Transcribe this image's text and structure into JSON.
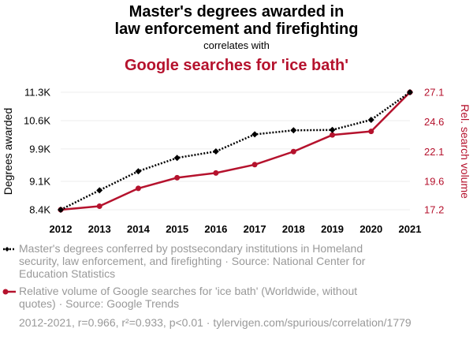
{
  "header": {
    "title_line1": "Master's degrees awarded in",
    "title_line2": "law enforcement and firefighting",
    "correlates": "correlates with",
    "subtitle": "Google searches for 'ice bath'"
  },
  "colors": {
    "series1": "#000000",
    "series2": "#b5122d",
    "grid": "#eeeeee",
    "legend_text": "#999999",
    "title": "#000000"
  },
  "chart_data": {
    "type": "line",
    "x": [
      "2012",
      "2013",
      "2014",
      "2015",
      "2016",
      "2017",
      "2018",
      "2019",
      "2020",
      "2021"
    ],
    "series": [
      {
        "name": "Master's degrees conferred by postsecondary institutions in Homeland security, law enforcement, and firefighting",
        "axis": "left",
        "style": "dotted",
        "marker": "diamond",
        "values": [
          8400,
          8880,
          9350,
          9680,
          9840,
          10260,
          10360,
          10370,
          10620,
          11300
        ]
      },
      {
        "name": "Relative volume of Google searches for 'ice bath' (Worldwide, without quotes)",
        "axis": "right",
        "style": "solid",
        "marker": "circle",
        "values": [
          17.2,
          17.5,
          19.0,
          19.9,
          20.3,
          21.0,
          22.1,
          23.5,
          23.8,
          27.1
        ]
      }
    ],
    "y_left": {
      "label": "Degrees awarded",
      "ticks": [
        8400,
        9100,
        9900,
        10600,
        11300
      ],
      "tick_labels": [
        "8.4K",
        "9.1K",
        "9.9K",
        "10.6K",
        "11.3K"
      ],
      "range": [
        8400,
        11300
      ]
    },
    "y_right": {
      "label": "Rel. search volume",
      "ticks": [
        17.2,
        19.6,
        22.1,
        24.6,
        27.1
      ],
      "tick_labels": [
        "17.2",
        "19.6",
        "22.1",
        "24.6",
        "27.1"
      ],
      "range": [
        17.2,
        27.1
      ]
    },
    "grid": true
  },
  "legend": {
    "item1": {
      "line1": "Master's degrees conferred by postsecondary institutions in Homeland",
      "line2": "security, law enforcement, and firefighting · Source: National Center for",
      "line3": "Education Statistics"
    },
    "item2": {
      "line1": "Relative volume of Google searches for 'ice bath' (Worldwide, without",
      "line2": "quotes) · Source: Google Trends"
    }
  },
  "footer": {
    "stats": "2012-2021, r=0.966, r²=0.933, p<0.01 · tylervigen.com/spurious/correlation/1779"
  }
}
